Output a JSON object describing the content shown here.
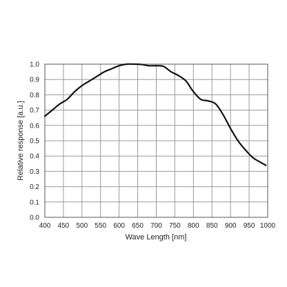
{
  "chart_data": {
    "type": "line",
    "title": "",
    "xlabel": "Wave Length [nm]",
    "ylabel": "Relative response [a.u.]",
    "xlim": [
      400,
      1000
    ],
    "ylim": [
      0.0,
      1.0
    ],
    "grid": true,
    "x_ticks": [
      "400",
      "450",
      "500",
      "550",
      "600",
      "650",
      "700",
      "750",
      "800",
      "850",
      "900",
      "950",
      "1000"
    ],
    "y_ticks": [
      "0.0",
      "0.1",
      "0.2",
      "0.3",
      "0.4",
      "0.5",
      "0.6",
      "0.7",
      "0.8",
      "0.9",
      "1.0"
    ],
    "series": [
      {
        "x": [
          400,
          420,
          440,
          460,
          480,
          500,
          520,
          540,
          560,
          580,
          600,
          620,
          640,
          660,
          680,
          700,
          720,
          740,
          760,
          780,
          800,
          820,
          840,
          860,
          880,
          900,
          920,
          940,
          960,
          980,
          995
        ],
        "y": [
          0.66,
          0.7,
          0.74,
          0.77,
          0.82,
          0.86,
          0.89,
          0.92,
          0.95,
          0.97,
          0.99,
          1.0,
          1.0,
          0.998,
          0.99,
          0.99,
          0.985,
          0.95,
          0.925,
          0.89,
          0.82,
          0.77,
          0.76,
          0.74,
          0.67,
          0.58,
          0.5,
          0.44,
          0.39,
          0.36,
          0.34
        ]
      }
    ]
  }
}
